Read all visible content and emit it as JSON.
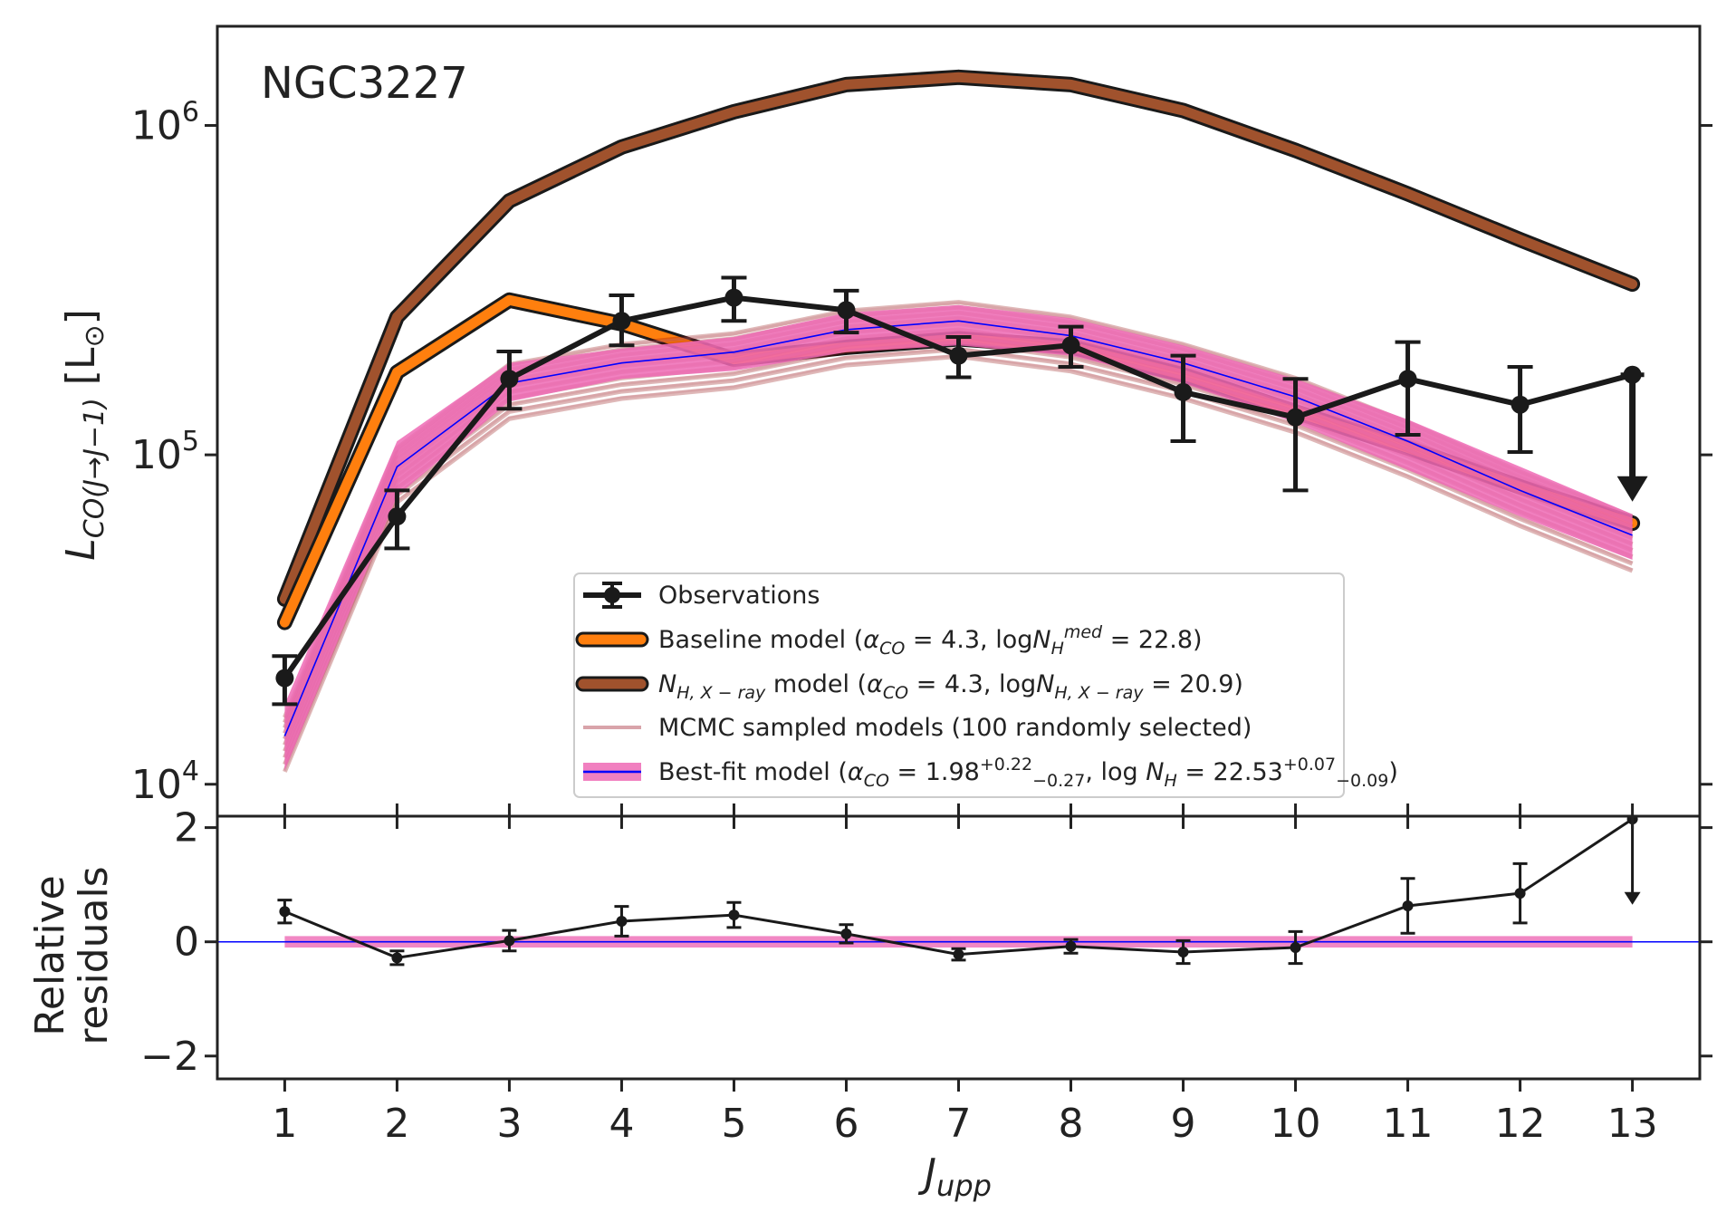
{
  "chart_data": [
    {
      "type": "line",
      "yscale": "log",
      "title": "NGC3227",
      "xlabel": "J_upp",
      "ylabel": "L_CO(J→J−1) [L⊙]",
      "ylabel_parts": {
        "main": "L",
        "sub": "CO(J→J−1)",
        "unit": "[L",
        "unit_sub": "⊙",
        "unit_end": "]"
      },
      "x": [
        1,
        2,
        3,
        4,
        5,
        6,
        7,
        8,
        9,
        10,
        11,
        12,
        13
      ],
      "xlim": [
        0.4,
        13.6
      ],
      "ylim": [
        8000,
        2000000
      ],
      "yticks": [
        {
          "value": 10000,
          "base": "10",
          "exp": "4"
        },
        {
          "value": 100000,
          "base": "10",
          "exp": "5"
        },
        {
          "value": 1000000,
          "base": "10",
          "exp": "6"
        }
      ],
      "series": [
        {
          "name": "Observations",
          "values": [
            21000,
            65000,
            170000,
            255000,
            300000,
            275000,
            200000,
            215000,
            155000,
            130000,
            170000,
            142000,
            175000
          ],
          "err_low": [
            3500,
            13000,
            32000,
            40000,
            45000,
            40000,
            28000,
            30000,
            45000,
            52000,
            55000,
            40000,
            0
          ],
          "err_high": [
            3500,
            13000,
            36000,
            50000,
            45000,
            40000,
            28000,
            30000,
            45000,
            40000,
            50000,
            43000,
            0
          ],
          "upper_limit_last": true,
          "color": "#1a1a1a"
        },
        {
          "name": "Baseline model",
          "values": [
            31000,
            178000,
            295000,
            250000,
            195000,
            212000,
            225000,
            213000,
            175000,
            135000,
            105000,
            80000,
            62000
          ],
          "color": "#ff7f0e"
        },
        {
          "name": "N_H,X-ray model",
          "values": [
            36500,
            262000,
            590000,
            860000,
            1100000,
            1330000,
            1400000,
            1330000,
            1110000,
            840000,
            620000,
            450000,
            330000
          ],
          "color": "#a0522d"
        },
        {
          "name": "Best-fit model",
          "values": [
            14000,
            92000,
            165000,
            190000,
            205000,
            240000,
            255000,
            230000,
            190000,
            150000,
            110000,
            78000,
            57000
          ],
          "band_low": [
            11000,
            75000,
            145000,
            170000,
            180000,
            205000,
            215000,
            200000,
            165000,
            125000,
            90000,
            65000,
            48000
          ],
          "band_high": [
            17500,
            110000,
            190000,
            210000,
            228000,
            270000,
            285000,
            260000,
            215000,
            170000,
            128000,
            92000,
            66000
          ],
          "color": "#0000ff",
          "band_color": "#ee6ab5"
        }
      ],
      "mcmc_scales": [
        0.78,
        0.82,
        0.86,
        0.9,
        0.94,
        0.98,
        1.02,
        1.06,
        1.1,
        1.14
      ],
      "legend": {
        "position": "lower-center",
        "entries": [
          {
            "key": "obs",
            "parts": [
              {
                "t": "Observations"
              }
            ]
          },
          {
            "key": "baseline",
            "parts": [
              {
                "t": "Baseline model ("
              },
              {
                "t": "α",
                "italic": true
              },
              {
                "t": "CO",
                "italic": true,
                "sub": true
              },
              {
                "t": " = 4.3, log"
              },
              {
                "t": "N",
                "italic": true
              },
              {
                "t": "H",
                "italic": true,
                "sub": true
              },
              {
                "t": "med",
                "italic": true,
                "sup": true
              },
              {
                "t": " = 22.8)"
              }
            ]
          },
          {
            "key": "xray",
            "parts": [
              {
                "t": "N",
                "italic": true
              },
              {
                "t": "H, X − ray",
                "italic": true,
                "sub": true
              },
              {
                "t": " model ("
              },
              {
                "t": "α",
                "italic": true
              },
              {
                "t": "CO",
                "italic": true,
                "sub": true
              },
              {
                "t": " = 4.3, log"
              },
              {
                "t": "N",
                "italic": true
              },
              {
                "t": "H, X − ray",
                "italic": true,
                "sub": true
              },
              {
                "t": " = 20.9)"
              }
            ]
          },
          {
            "key": "mcmc",
            "parts": [
              {
                "t": "MCMC sampled models (100 randomly selected)"
              }
            ]
          },
          {
            "key": "best",
            "parts": [
              {
                "t": "Best-fit model ("
              },
              {
                "t": "α",
                "italic": true
              },
              {
                "t": "CO",
                "italic": true,
                "sub": true
              },
              {
                "t": " = 1.98"
              },
              {
                "t": "+0.22",
                "sup": true
              },
              {
                "t": "−0.27",
                "sub": true
              },
              {
                "t": ", log "
              },
              {
                "t": "N",
                "italic": true
              },
              {
                "t": "H",
                "italic": true,
                "sub": true
              },
              {
                "t": " = 22.53"
              },
              {
                "t": "+0.07",
                "sup": true
              },
              {
                "t": "−0.09",
                "sub": true
              },
              {
                "t": ")"
              }
            ]
          }
        ]
      }
    },
    {
      "type": "line",
      "xlabel": "J_upp",
      "xlabel_parts": {
        "main": "J",
        "sub": "upp"
      },
      "ylabel_lines": [
        "Relative",
        "residuals"
      ],
      "x": [
        1,
        2,
        3,
        4,
        5,
        6,
        7,
        8,
        9,
        10,
        11,
        12,
        13
      ],
      "xticks": [
        "1",
        "2",
        "3",
        "4",
        "5",
        "6",
        "7",
        "8",
        "9",
        "10",
        "11",
        "12",
        "13"
      ],
      "xlim": [
        0.4,
        13.6
      ],
      "ylim": [
        -2.4,
        2.2
      ],
      "yticks": [
        {
          "value": -2,
          "label": "−2"
        },
        {
          "value": 0,
          "label": "0"
        },
        {
          "value": 2,
          "label": "2"
        }
      ],
      "series": [
        {
          "name": "Relative residuals",
          "values": [
            0.53,
            -0.28,
            0.02,
            0.36,
            0.47,
            0.14,
            -0.22,
            -0.08,
            -0.18,
            -0.1,
            0.63,
            0.85,
            2.15
          ],
          "err": [
            0.2,
            0.12,
            0.18,
            0.26,
            0.22,
            0.16,
            0.1,
            0.12,
            0.2,
            0.28,
            0.48,
            0.52,
            0
          ],
          "upper_limit_last": true,
          "color": "#1a1a1a"
        }
      ],
      "band": {
        "low": -0.1,
        "high": 0.1,
        "color": "#ee6ab5"
      },
      "baseline": {
        "value": 0,
        "color": "#0000ff"
      }
    }
  ]
}
